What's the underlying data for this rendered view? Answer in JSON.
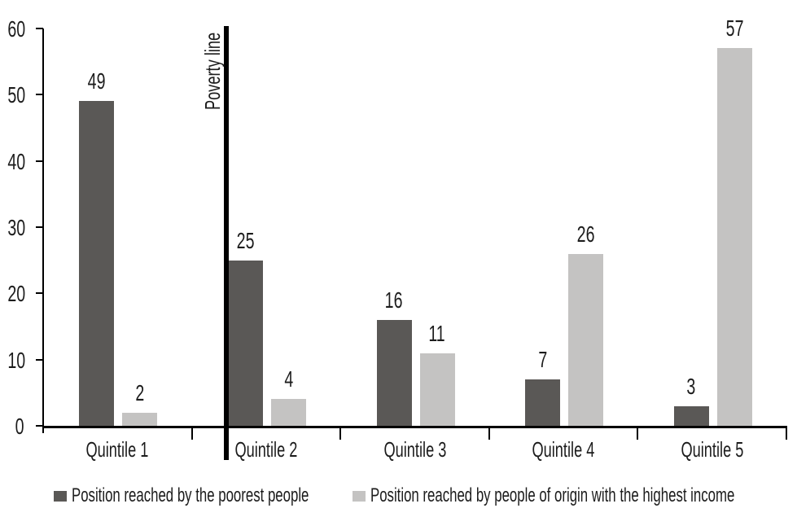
{
  "chart_data": {
    "type": "bar",
    "title": "",
    "xlabel": "",
    "ylabel": "",
    "categories": [
      "Quintile 1",
      "Quintile 2",
      "Quintile 3",
      "Quintile 4",
      "Quintile 5"
    ],
    "series": [
      {
        "name": "Position reached by the poorest people",
        "color": "#5a5856",
        "values": [
          49,
          25,
          16,
          7,
          3
        ]
      },
      {
        "name": "Position reached by people of origin with the highest income",
        "color": "#c4c3c2",
        "values": [
          2,
          4,
          11,
          26,
          57
        ]
      }
    ],
    "ylim": [
      0,
      60
    ],
    "yticks": [
      0,
      10,
      20,
      30,
      40,
      50,
      60
    ],
    "grid": false,
    "bar_value_labels": true,
    "legend_position": "bottom",
    "annotation": {
      "label": "Poverty line",
      "type": "vertical-line",
      "position": "left edge of Quintile 2 group",
      "color": "#000000"
    }
  },
  "colors": {
    "background": "#ffffff",
    "axis": "#000000",
    "text": "#1c1c1c",
    "dark_bar": "#5a5856",
    "light_bar": "#c4c3c2"
  }
}
